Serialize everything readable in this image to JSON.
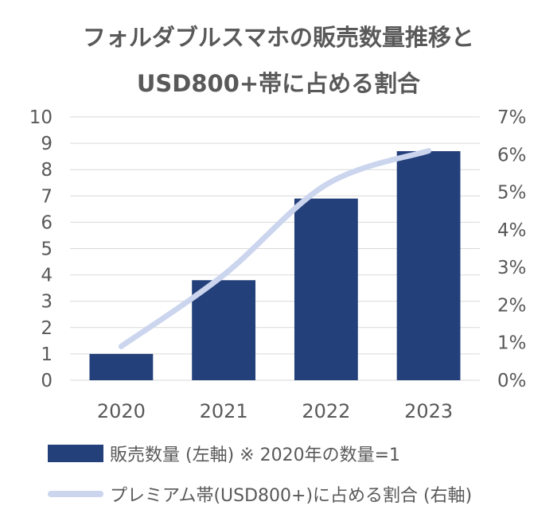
{
  "chart_data": {
    "type": "bar",
    "title_lines": [
      "フォルダブルスマホの販売数量推移と",
      "USD800+帯に占める割合"
    ],
    "categories": [
      "2020",
      "2021",
      "2022",
      "2023"
    ],
    "series": [
      {
        "name": "販売数量 (左軸) ※ 2020年の数量=1",
        "type": "bar",
        "axis": "left",
        "values": [
          1.0,
          3.8,
          6.9,
          8.7
        ],
        "color": "#24407a"
      },
      {
        "name": "プレミアム帯(USD800+)に占める割合 (右軸)",
        "type": "line",
        "axis": "right",
        "values": [
          0.9,
          2.8,
          5.2,
          6.1
        ],
        "color": "#cbd5ee"
      }
    ],
    "y_left": {
      "min": 0,
      "max": 10,
      "ticks": [
        "0",
        "1",
        "2",
        "3",
        "4",
        "5",
        "6",
        "7",
        "8",
        "9",
        "10"
      ]
    },
    "y_right": {
      "min": 0,
      "max": 7,
      "ticks": [
        "0%",
        "1%",
        "2%",
        "3%",
        "4%",
        "5%",
        "6%",
        "7%"
      ]
    },
    "grid": true,
    "legend_position": "bottom"
  }
}
